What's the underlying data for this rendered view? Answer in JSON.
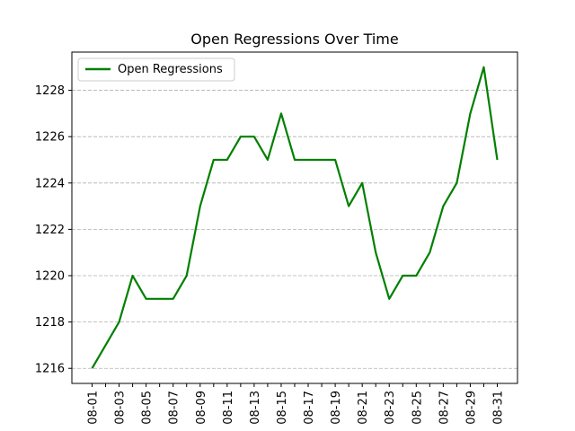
{
  "chart_data": {
    "type": "line",
    "title": "Open Regressions Over Time",
    "xlabel": "",
    "ylabel": "",
    "x": [
      "08-01",
      "08-02",
      "08-03",
      "08-04",
      "08-05",
      "08-06",
      "08-07",
      "08-08",
      "08-09",
      "08-10",
      "08-11",
      "08-12",
      "08-13",
      "08-14",
      "08-15",
      "08-16",
      "08-17",
      "08-18",
      "08-19",
      "08-20",
      "08-21",
      "08-22",
      "08-23",
      "08-24",
      "08-25",
      "08-26",
      "08-27",
      "08-28",
      "08-29",
      "08-30",
      "08-31"
    ],
    "x_tick_labels": [
      "08-01",
      "08-03",
      "08-05",
      "08-07",
      "08-09",
      "08-11",
      "08-13",
      "08-15",
      "08-17",
      "08-19",
      "08-21",
      "08-23",
      "08-25",
      "08-27",
      "08-29",
      "08-31"
    ],
    "series": [
      {
        "name": "Open Regressions",
        "color": "#008000",
        "values": [
          1216,
          1217,
          1218,
          1220,
          1219,
          1219,
          1219,
          1220,
          1223,
          1225,
          1225,
          1226,
          1226,
          1225,
          1227,
          1225,
          1225,
          1225,
          1225,
          1223,
          1224,
          1221,
          1219,
          1220,
          1220,
          1221,
          1223,
          1224,
          1227,
          1229,
          1225
        ]
      }
    ],
    "yticks": [
      1216,
      1218,
      1220,
      1222,
      1224,
      1226,
      1228
    ],
    "ylim": [
      1215.35,
      1229.65
    ],
    "grid": "y-dashed",
    "legend_position": "top-left"
  }
}
